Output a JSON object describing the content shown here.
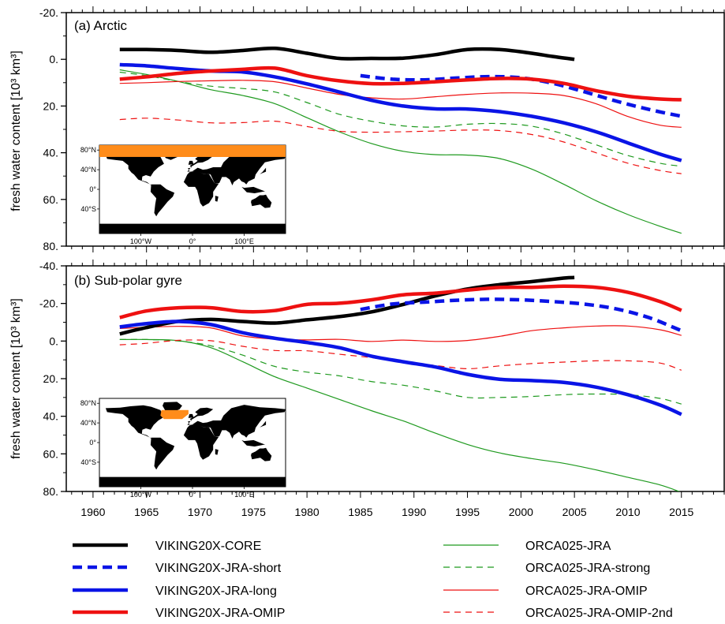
{
  "colors": {
    "black": "#000000",
    "blue": "#0a14e6",
    "red": "#ee1111",
    "green": "#1f9a1f",
    "orange": "#ff8c1a",
    "land": "#000000"
  },
  "chart_data": [
    {
      "type": "line",
      "panel_label": "(a) Arctic",
      "ylabel": "fresh water content [10³ km³]",
      "y_inverted": true,
      "ylim": [
        -20,
        80
      ],
      "yticks": [
        "-20.",
        "0.",
        "20.",
        "40.",
        "60.",
        "80."
      ],
      "ytick_values": [
        -20,
        0,
        20,
        40,
        60,
        80
      ],
      "xlim": [
        1957.5,
        2019
      ],
      "series": [
        {
          "name": "VIKING20X-CORE",
          "color": "black",
          "width": 4.5,
          "dash": "",
          "x": [
            1962.5,
            1965,
            1968,
            1971,
            1974,
            1977,
            1980,
            1983,
            1986,
            1989,
            1992,
            1995,
            1998,
            2001,
            2003,
            2005
          ],
          "y": [
            -4.2,
            -4.2,
            -3.8,
            -3,
            -3.8,
            -4.7,
            -2.6,
            -0.4,
            -0.4,
            -0.5,
            -2,
            -4.2,
            -4.2,
            -2.6,
            -1.2,
            0
          ]
        },
        {
          "name": "VIKING20X-JRA-short",
          "color": "blue",
          "width": 4.5,
          "dash": "12,7",
          "x": [
            1985,
            1988,
            1991,
            1994,
            1997,
            2000,
            2003,
            2006,
            2009,
            2012,
            2015
          ],
          "y": [
            7,
            8.5,
            8.8,
            8,
            7.4,
            7.9,
            10.3,
            14,
            18,
            21.5,
            24.4
          ]
        },
        {
          "name": "VIKING20X-JRA-long",
          "color": "blue",
          "width": 4.5,
          "dash": "",
          "x": [
            1962.5,
            1965,
            1968,
            1971,
            1974,
            1977,
            1980,
            1983,
            1986,
            1989,
            1992,
            1995,
            1998,
            2001,
            2004,
            2007,
            2010,
            2013,
            2015
          ],
          "y": [
            2.3,
            2.8,
            4,
            5,
            5.4,
            7.5,
            10.5,
            14,
            17.5,
            20,
            21.2,
            21.3,
            22.4,
            24.4,
            27.2,
            31,
            35.8,
            40.6,
            43.3
          ]
        },
        {
          "name": "VIKING20X-JRA-OMIP",
          "color": "red",
          "width": 4.5,
          "dash": "",
          "x": [
            1962.5,
            1965,
            1968,
            1971,
            1974,
            1977,
            1980,
            1983,
            1986,
            1989,
            1992,
            1995,
            1998,
            2001,
            2004,
            2007,
            2010,
            2013,
            2015
          ],
          "y": [
            8.5,
            7.5,
            6,
            5,
            4.3,
            3.8,
            7,
            9.2,
            10.4,
            10.3,
            9.6,
            8.8,
            8.2,
            8.5,
            10.3,
            13.4,
            15.8,
            17,
            17.3
          ]
        },
        {
          "name": "ORCA025-JRA",
          "color": "green",
          "width": 1.2,
          "dash": "",
          "x": [
            1962.5,
            1965,
            1968,
            1971,
            1974,
            1977,
            1980,
            1983,
            1986,
            1989,
            1992,
            1995,
            1998,
            2001,
            2004,
            2007,
            2010,
            2013,
            2015
          ],
          "y": [
            4.5,
            6.5,
            9.5,
            13,
            15.5,
            19,
            25,
            31,
            36,
            39.4,
            40.8,
            41,
            42.5,
            47,
            53.5,
            60.5,
            66.5,
            71.5,
            74.5
          ]
        },
        {
          "name": "ORCA025-JRA-strong",
          "color": "green",
          "width": 1.2,
          "dash": "8,6",
          "x": [
            1962.5,
            1965,
            1968,
            1971,
            1974,
            1977,
            1980,
            1983,
            1986,
            1989,
            1992,
            1995,
            1998,
            2001,
            2004,
            2007,
            2010,
            2013,
            2015
          ],
          "y": [
            5.5,
            7,
            9.5,
            11.5,
            12.5,
            14,
            18.5,
            23.5,
            26.5,
            28.5,
            29,
            27.8,
            27.5,
            28.6,
            32,
            36.6,
            41.2,
            44.5,
            45.8
          ]
        },
        {
          "name": "ORCA025-JRA-OMIP",
          "color": "red",
          "width": 1.2,
          "dash": "",
          "x": [
            1962.5,
            1965,
            1968,
            1971,
            1974,
            1977,
            1980,
            1983,
            1986,
            1989,
            1992,
            1995,
            1998,
            2001,
            2004,
            2007,
            2010,
            2013,
            2015
          ],
          "y": [
            10.3,
            10,
            9.5,
            9.2,
            9,
            9.6,
            12.3,
            15,
            16.5,
            17,
            16,
            15,
            14.4,
            14.5,
            15.5,
            19,
            24.5,
            28.2,
            29.1
          ]
        },
        {
          "name": "ORCA025-JRA-OMIP-2nd",
          "color": "red",
          "width": 1.2,
          "dash": "8,6",
          "x": [
            1962.5,
            1965,
            1968,
            1971,
            1974,
            1977,
            1980,
            1983,
            1986,
            1989,
            1992,
            1995,
            1998,
            2001,
            2004,
            2007,
            2010,
            2013,
            2015
          ],
          "y": [
            25.8,
            25.2,
            26,
            27.2,
            27.1,
            26.5,
            28.8,
            30.8,
            31.2,
            31,
            30.7,
            30.3,
            30.5,
            32.2,
            35.4,
            40,
            44.5,
            47.6,
            49
          ]
        }
      ],
      "inset": {
        "region": "Arctic",
        "lat_labels": [
          "80°N",
          "40°N",
          "0°",
          "40°S"
        ],
        "lon_labels": [
          "100°W",
          "0°",
          "100°E"
        ]
      }
    },
    {
      "type": "line",
      "panel_label": "(b) Sub-polar gyre",
      "ylabel": "fresh water content [10³ km³]",
      "y_inverted": true,
      "ylim": [
        -40,
        80
      ],
      "yticks": [
        "-40.",
        "-20.",
        "0.",
        "20.",
        "40.",
        "60.",
        "80."
      ],
      "ytick_values": [
        -40,
        -20,
        0,
        20,
        40,
        60,
        80
      ],
      "xlim": [
        1957.5,
        2019
      ],
      "xticks": [
        1960,
        1965,
        1970,
        1975,
        1980,
        1985,
        1990,
        1995,
        2000,
        2005,
        2010,
        2015
      ],
      "series": [
        {
          "name": "VIKING20X-CORE",
          "color": "black",
          "width": 4.5,
          "dash": "",
          "x": [
            1962.5,
            1965,
            1968,
            1971,
            1974,
            1977,
            1980,
            1983,
            1986,
            1989,
            1992,
            1995,
            1998,
            2001,
            2004,
            2005
          ],
          "y": [
            -3.8,
            -7.2,
            -10.5,
            -11.5,
            -10.4,
            -9.6,
            -11.3,
            -13,
            -15.5,
            -19.5,
            -24,
            -27.7,
            -30,
            -31.6,
            -33.5,
            -33.8
          ]
        },
        {
          "name": "VIKING20X-JRA-short",
          "color": "blue",
          "width": 4.5,
          "dash": "12,7",
          "x": [
            1985,
            1988,
            1991,
            1994,
            1997,
            2000,
            2003,
            2006,
            2009,
            2012,
            2015
          ],
          "y": [
            -16.8,
            -19.7,
            -20.7,
            -21.7,
            -22.2,
            -21.9,
            -21,
            -19.6,
            -17,
            -12.4,
            -5.5
          ]
        },
        {
          "name": "VIKING20X-JRA-long",
          "color": "blue",
          "width": 4.5,
          "dash": "",
          "x": [
            1962.5,
            1965,
            1968,
            1971,
            1974,
            1977,
            1980,
            1983,
            1986,
            1989,
            1992,
            1995,
            1998,
            2001,
            2004,
            2007,
            2010,
            2013,
            2015
          ],
          "y": [
            -7.5,
            -9.3,
            -10.4,
            -8.8,
            -4.4,
            -1.5,
            0.8,
            3.5,
            8,
            11,
            13.8,
            17.7,
            20.3,
            21,
            22,
            24.5,
            28.5,
            34,
            39
          ]
        },
        {
          "name": "VIKING20X-JRA-OMIP",
          "color": "red",
          "width": 4.5,
          "dash": "",
          "x": [
            1962.5,
            1965,
            1968,
            1971,
            1974,
            1977,
            1980,
            1983,
            1986,
            1989,
            1992,
            1995,
            1998,
            2001,
            2004,
            2007,
            2010,
            2013,
            2015
          ],
          "y": [
            -12.5,
            -16,
            -17.7,
            -17.7,
            -15.7,
            -16.2,
            -19.5,
            -20.1,
            -21.9,
            -24.6,
            -25.5,
            -27.1,
            -28.5,
            -28.6,
            -29.2,
            -28.6,
            -25.9,
            -21,
            -16.3
          ]
        },
        {
          "name": "ORCA025-JRA",
          "color": "green",
          "width": 1.2,
          "dash": "",
          "x": [
            1962.5,
            1965,
            1968,
            1971,
            1974,
            1977,
            1980,
            1983,
            1986,
            1989,
            1992,
            1995,
            1998,
            2001,
            2004,
            2007,
            2010,
            2013,
            2015
          ],
          "y": [
            -0.8,
            -0.8,
            -0.2,
            3.5,
            11,
            19,
            25,
            31,
            37,
            42.5,
            49,
            55,
            59.5,
            62.5,
            65,
            68.5,
            72.5,
            76.5,
            80.5
          ]
        },
        {
          "name": "ORCA025-JRA-strong",
          "color": "green",
          "width": 1.2,
          "dash": "8,6",
          "x": [
            1962.5,
            1965,
            1968,
            1971,
            1974,
            1977,
            1980,
            1983,
            1986,
            1989,
            1992,
            1995,
            1998,
            2001,
            2004,
            2007,
            2010,
            2013,
            2015
          ],
          "y": [
            -0.8,
            -0.8,
            0,
            2.5,
            7.5,
            13.5,
            16.5,
            18.5,
            21.5,
            23.5,
            26.5,
            30,
            30,
            29.5,
            28.5,
            28.2,
            28.5,
            30.5,
            33.5
          ]
        },
        {
          "name": "ORCA025-JRA-OMIP",
          "color": "red",
          "width": 1.2,
          "dash": "",
          "x": [
            1962.5,
            1965,
            1968,
            1971,
            1974,
            1977,
            1980,
            1983,
            1986,
            1989,
            1992,
            1995,
            1998,
            2001,
            2004,
            2007,
            2010,
            2013,
            2015
          ],
          "y": [
            -6.7,
            -7.3,
            -7.8,
            -7,
            -2.7,
            -1,
            -0.6,
            -0.9,
            0.2,
            -0.5,
            0.2,
            -0.3,
            -2.5,
            -5.5,
            -7,
            -8,
            -8,
            -6,
            -3
          ]
        },
        {
          "name": "ORCA025-JRA-OMIP-2nd",
          "color": "red",
          "width": 1.2,
          "dash": "8,6",
          "x": [
            1962.5,
            1965,
            1968,
            1971,
            1974,
            1977,
            1980,
            1983,
            1986,
            1989,
            1992,
            1995,
            1998,
            2001,
            2004,
            2007,
            2010,
            2013,
            2015
          ],
          "y": [
            2,
            1.2,
            -0.4,
            -0.2,
            2.8,
            5,
            5.2,
            7,
            8.8,
            11,
            13,
            14.7,
            13.2,
            12,
            11.2,
            10.5,
            10.5,
            11.7,
            15.5
          ]
        }
      ],
      "inset": {
        "region": "Sub-polar gyre",
        "lat_labels": [
          "80°N",
          "40°N",
          "0°",
          "40°S"
        ],
        "lon_labels": [
          "100°W",
          "0°",
          "100°E"
        ]
      }
    }
  ],
  "legend": {
    "left": [
      {
        "label": "VIKING20X-CORE",
        "color": "black",
        "width": 4.5,
        "dash": ""
      },
      {
        "label": "VIKING20X-JRA-short",
        "color": "blue",
        "width": 4.5,
        "dash": "12,7"
      },
      {
        "label": "VIKING20X-JRA-long",
        "color": "blue",
        "width": 4.5,
        "dash": ""
      },
      {
        "label": "VIKING20X-JRA-OMIP",
        "color": "red",
        "width": 4.5,
        "dash": ""
      }
    ],
    "right": [
      {
        "label": "ORCA025-JRA",
        "color": "green",
        "width": 1.2,
        "dash": ""
      },
      {
        "label": "ORCA025-JRA-strong",
        "color": "green",
        "width": 1.2,
        "dash": "8,6"
      },
      {
        "label": "ORCA025-JRA-OMIP",
        "color": "red",
        "width": 1.2,
        "dash": ""
      },
      {
        "label": "ORCA025-JRA-OMIP-2nd",
        "color": "red",
        "width": 1.2,
        "dash": "8,6"
      }
    ]
  }
}
